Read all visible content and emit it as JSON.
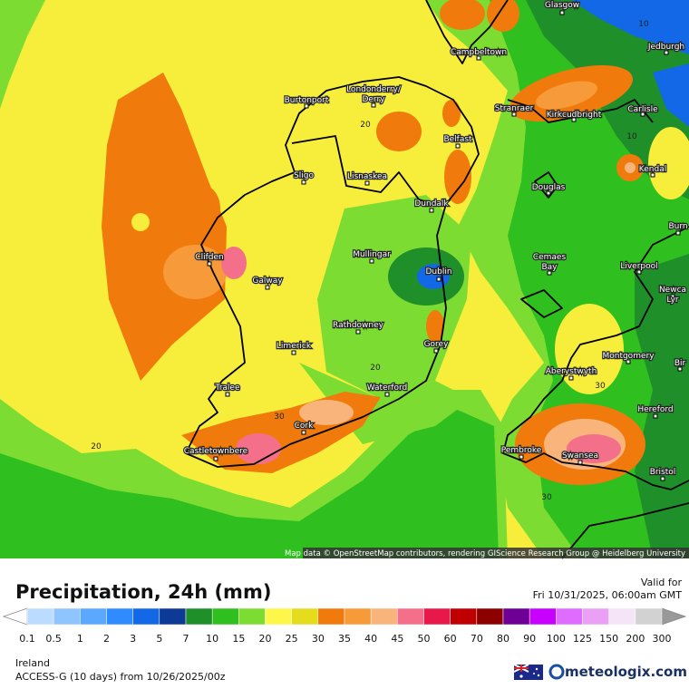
{
  "map": {
    "places": [
      [
        "Glasgow"
      ],
      [
        "Campbeltown"
      ],
      [
        "Jedburgh"
      ],
      [
        "Burtonport"
      ],
      [
        "Londonderry/",
        "Derry"
      ],
      [
        "Stranraer"
      ],
      [
        "Kirkcudbright"
      ],
      [
        "Carlisle"
      ],
      [
        "Belfast"
      ],
      [
        "Kendal"
      ],
      [
        "Sligo"
      ],
      [
        "Lisnaskea"
      ],
      [
        "Douglas"
      ],
      [
        "Dundalk"
      ],
      [
        "Burn"
      ],
      [
        "Clifden"
      ],
      [
        "Mullingar"
      ],
      [
        "Cemaes",
        "Bay"
      ],
      [
        "Liverpool"
      ],
      [
        "Galway"
      ],
      [
        "Dublin"
      ],
      [
        "Newca",
        "Lyr"
      ],
      [
        "Rathdowney"
      ],
      [
        "Limerick"
      ],
      [
        "Gorey"
      ],
      [
        "Montgomery"
      ],
      [
        "Bir"
      ],
      [
        "Aberystwyth"
      ],
      [
        "Tralee"
      ],
      [
        "Waterford"
      ],
      [
        "Hereford"
      ],
      [
        "Cork"
      ],
      [
        "Castletownbere"
      ],
      [
        "Pembroke"
      ],
      [
        "Swansea"
      ],
      [
        "Bristol"
      ]
    ],
    "contour_labels": [
      "10",
      "10",
      "20",
      "20",
      "30",
      "30",
      "30",
      "20"
    ],
    "attribution": "Map data © OpenStreetMap contributors, rendering GIScience Research Group @ Heidelberg University"
  },
  "header": {
    "title": "Precipitation, 24h (mm)",
    "valid_label": "Valid for",
    "valid_time": "Fri 10/31/2025, 06:00am GMT"
  },
  "legend": {
    "labels": [
      0.1,
      0.5,
      1,
      2,
      3,
      5,
      7,
      10,
      15,
      20,
      25,
      30,
      35,
      40,
      45,
      50,
      60,
      70,
      80,
      90,
      100,
      125,
      150,
      200,
      300
    ],
    "colors": [
      "#bcdcff",
      "#8ec5ff",
      "#5aa9ff",
      "#2f8bff",
      "#1268e6",
      "#0c3a96",
      "#1f8f2a",
      "#2fbf1f",
      "#7ddc32",
      "#fff64a",
      "#e6dc1e",
      "#f07a0c",
      "#f79a3a",
      "#f9b47c",
      "#f4708a",
      "#e8194a",
      "#c00000",
      "#8c0000",
      "#6e0096",
      "#c800ff",
      "#e06bff",
      "#eaa0f5",
      "#f5e4f8",
      "#d2d2d2"
    ]
  },
  "footer": {
    "region": "Ireland",
    "model": "ACCESS-G (10 days) from 10/26/2025/00z",
    "brand": "meteologix.com"
  }
}
